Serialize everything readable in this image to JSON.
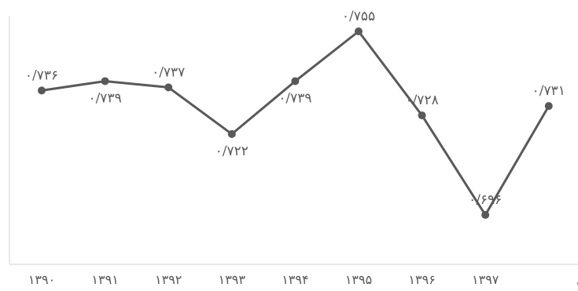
{
  "chart_data": {
    "type": "line",
    "title": "",
    "xlabel": "",
    "ylabel": "",
    "categories": [
      "۱۳۹۰",
      "۱۳۹۱",
      "۱۳۹۲",
      "۱۳۹۳",
      "۱۳۹۴",
      "۱۳۹۵",
      "۱۳۹۶",
      "۱۳۹۷",
      "میانگین کل"
    ],
    "values": [
      0.736,
      0.739,
      0.737,
      0.722,
      0.739,
      0.755,
      0.728,
      0.696,
      0.731
    ],
    "data_labels": [
      "۰/۷۳۶",
      "۰/۷۳۹",
      "۰/۷۳۷",
      "۰/۷۲۲",
      "۰/۷۳۹",
      "۰/۷۵۵",
      "۰/۷۲۸",
      "۰/۶۹۶",
      "۰/۷۳۱"
    ],
    "label_position": [
      "above",
      "below",
      "above",
      "below",
      "below",
      "above",
      "above",
      "above",
      "above"
    ],
    "grid": false,
    "legend": "none",
    "colors": {
      "line": "#595959",
      "marker": "#595959",
      "axis": "#d0d0d0",
      "text": "#595959"
    }
  }
}
